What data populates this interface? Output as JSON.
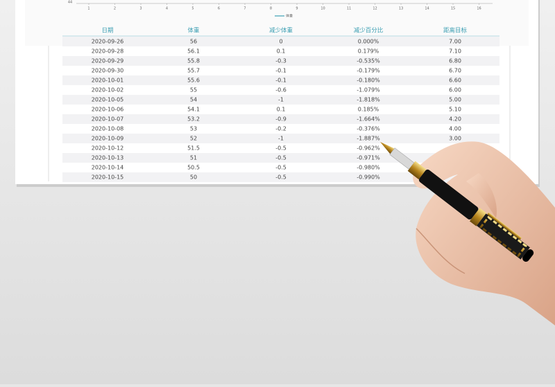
{
  "chart": {
    "y_tick": "44",
    "x_ticks": [
      1,
      2,
      3,
      4,
      5,
      6,
      7,
      8,
      9,
      10,
      11,
      12,
      13,
      14,
      15,
      16
    ],
    "legend": "体重"
  },
  "table": {
    "headers": [
      "日期",
      "体重",
      "减少体重",
      "减少百分比",
      "距离目标"
    ],
    "rows": [
      [
        "2020-09-26",
        "56",
        "0",
        "0.000%",
        "7.00"
      ],
      [
        "2020-09-28",
        "56.1",
        "0.1",
        "0.179%",
        "7.10"
      ],
      [
        "2020-09-29",
        "55.8",
        "-0.3",
        "-0.535%",
        "6.80"
      ],
      [
        "2020-09-30",
        "55.7",
        "-0.1",
        "-0.179%",
        "6.70"
      ],
      [
        "2020-10-01",
        "55.6",
        "-0.1",
        "-0.180%",
        "6.60"
      ],
      [
        "2020-10-02",
        "55",
        "-0.6",
        "-1.079%",
        "6.00"
      ],
      [
        "2020-10-05",
        "54",
        "-1",
        "-1.818%",
        "5.00"
      ],
      [
        "2020-10-06",
        "54.1",
        "0.1",
        "0.185%",
        "5.10"
      ],
      [
        "2020-10-07",
        "53.2",
        "-0.9",
        "-1.664%",
        "4.20"
      ],
      [
        "2020-10-08",
        "53",
        "-0.2",
        "-0.376%",
        "4.00"
      ],
      [
        "2020-10-09",
        "52",
        "-1",
        "-1.887%",
        "3.00"
      ],
      [
        "2020-10-12",
        "51.5",
        "-0.5",
        "-0.962%",
        null
      ],
      [
        "2020-10-13",
        "51",
        "-0.5",
        "-0.971%",
        null
      ],
      [
        "2020-10-14",
        "50.5",
        "-0.5",
        "-0.980%",
        null
      ],
      [
        "2020-10-15",
        "50",
        "-0.5",
        "-0.990%",
        null
      ]
    ]
  }
}
